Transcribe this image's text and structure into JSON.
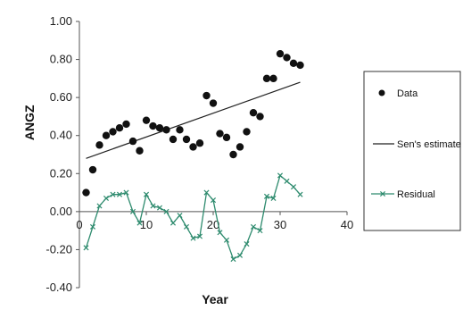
{
  "chart_data": {
    "type": "scatter",
    "xlabel": "Year",
    "ylabel": "ANGZ",
    "xlim": [
      0,
      40
    ],
    "ylim": [
      -0.4,
      1.0
    ],
    "x_ticks": [
      "0",
      "10",
      "20",
      "30",
      "40"
    ],
    "y_ticks": [
      "-0.40",
      "-0.20",
      "0.00",
      "0.20",
      "0.40",
      "0.60",
      "0.80",
      "1.00"
    ],
    "grid": false,
    "legend_position": "right",
    "series": [
      {
        "name": "Data",
        "kind": "scatter",
        "color": "#111111",
        "x": [
          1,
          2,
          3,
          4,
          5,
          6,
          7,
          8,
          9,
          10,
          11,
          12,
          13,
          14,
          15,
          16,
          17,
          18,
          19,
          20,
          21,
          22,
          23,
          24,
          25,
          26,
          27,
          28,
          29,
          30,
          31,
          32,
          33
        ],
        "y": [
          0.1,
          0.22,
          0.35,
          0.4,
          0.42,
          0.44,
          0.46,
          0.37,
          0.32,
          0.48,
          0.45,
          0.44,
          0.43,
          0.38,
          0.43,
          0.38,
          0.34,
          0.36,
          0.61,
          0.57,
          0.41,
          0.39,
          0.3,
          0.34,
          0.42,
          0.52,
          0.5,
          0.7,
          0.7,
          0.83,
          0.81,
          0.78,
          0.77
        ]
      },
      {
        "name": "Sen's estimate",
        "kind": "line",
        "color": "#222222",
        "x": [
          1,
          33
        ],
        "y": [
          0.28,
          0.68
        ]
      },
      {
        "name": "Residual",
        "kind": "line-marker",
        "color": "#2e8b6e",
        "x": [
          1,
          2,
          3,
          4,
          5,
          6,
          7,
          8,
          9,
          10,
          11,
          12,
          13,
          14,
          15,
          16,
          17,
          18,
          19,
          20,
          21,
          22,
          23,
          24,
          25,
          26,
          27,
          28,
          29,
          30,
          31,
          32,
          33
        ],
        "y": [
          -0.19,
          -0.08,
          0.03,
          0.07,
          0.09,
          0.09,
          0.1,
          0.0,
          -0.06,
          0.09,
          0.03,
          0.02,
          0.0,
          -0.06,
          -0.02,
          -0.08,
          -0.14,
          -0.13,
          0.1,
          0.06,
          -0.11,
          -0.15,
          -0.25,
          -0.23,
          -0.17,
          -0.08,
          -0.1,
          0.08,
          0.07,
          0.19,
          0.16,
          0.13,
          0.09
        ]
      }
    ]
  }
}
